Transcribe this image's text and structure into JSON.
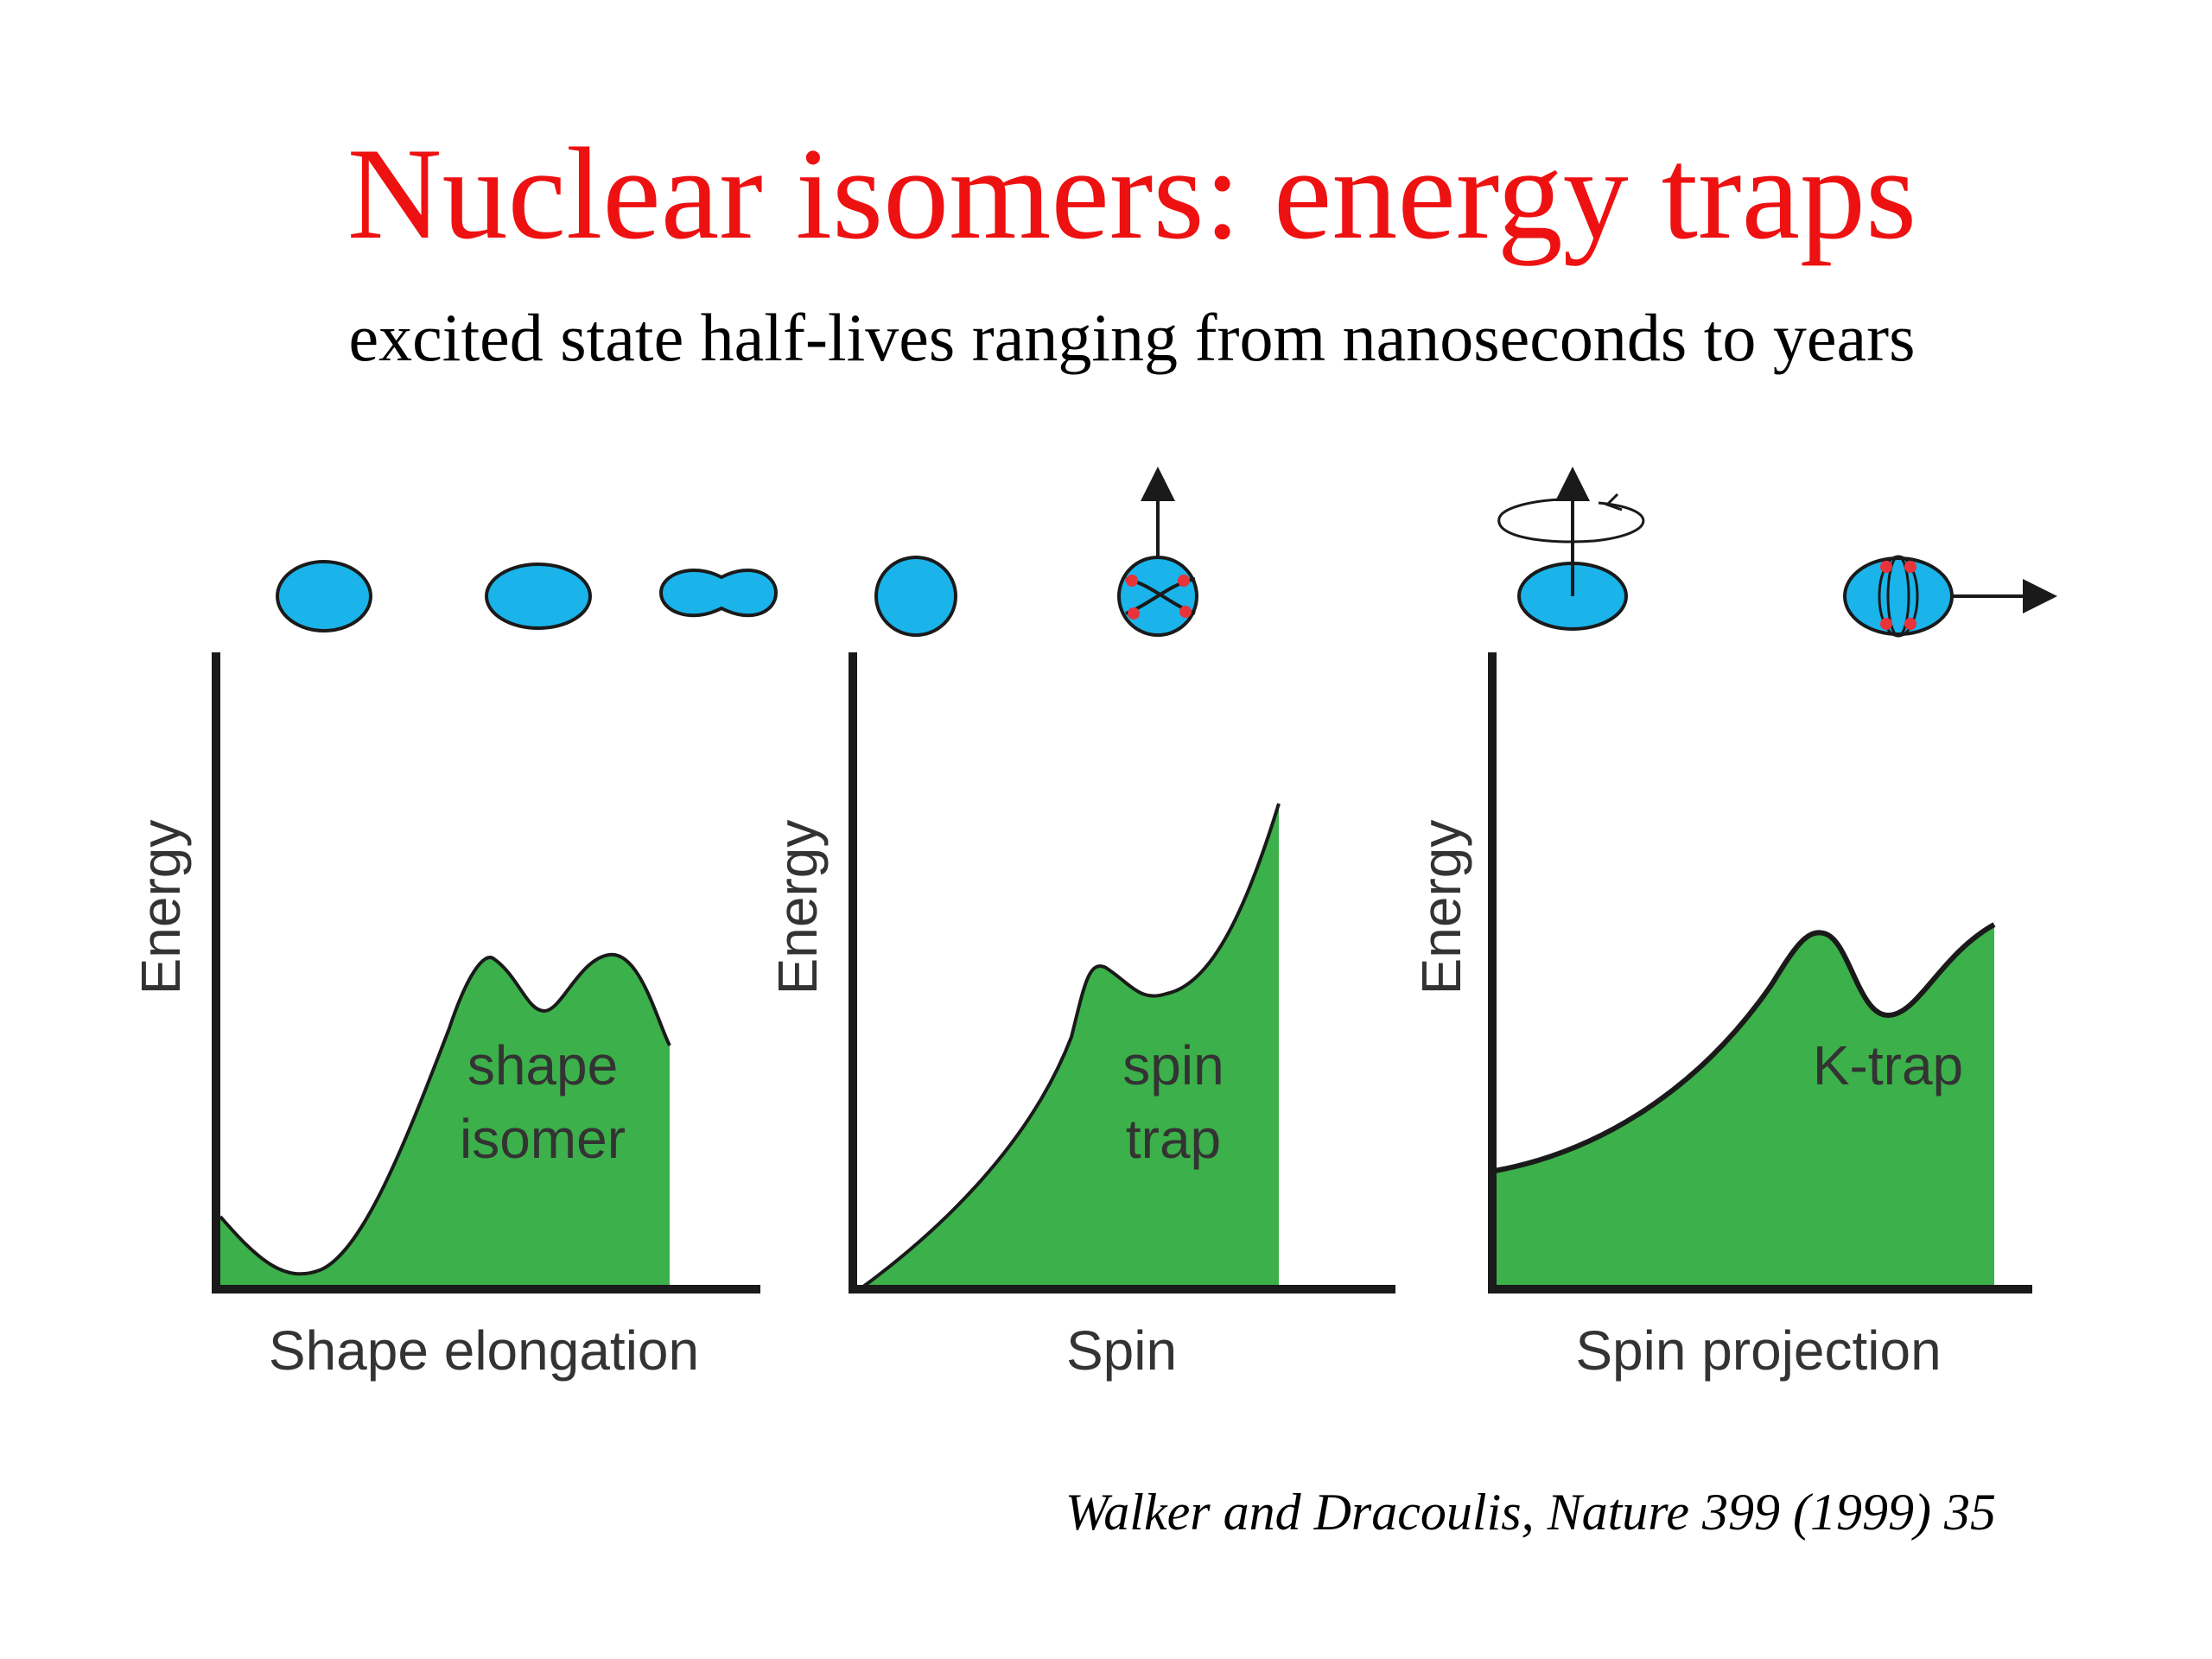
{
  "title": "Nuclear isomers: energy traps",
  "subtitle": "excited state half-lives ranging from nanoseconds to years",
  "citation": "Walker and Dracoulis, Nature 399 (1999) 35",
  "colors": {
    "title": "#ee1111",
    "nucleus_fill": "#1ab3ea",
    "well_fill": "#3cb04a",
    "nucleon": "#e8333a",
    "outline": "#1a1a1a"
  },
  "panels": [
    {
      "id": "shape",
      "ylabel": "Energy",
      "xlabel": "Shape elongation",
      "well_label": [
        "shape",
        "isomer"
      ],
      "icons": [
        "oblate-nucleus-icon",
        "elongated-nucleus-icon",
        "fissioning-nucleus-icon"
      ]
    },
    {
      "id": "spin",
      "ylabel": "Energy",
      "xlabel": "Spin",
      "well_label": [
        "spin",
        "trap"
      ],
      "icons": [
        "spherical-nucleus-icon",
        "spin-aligned-nucleus-icon"
      ]
    },
    {
      "id": "k",
      "ylabel": "Energy",
      "xlabel": "Spin projection",
      "well_label": [
        "K-trap"
      ],
      "icons": [
        "rotating-nucleus-icon",
        "spin-projection-nucleus-icon"
      ]
    }
  ]
}
